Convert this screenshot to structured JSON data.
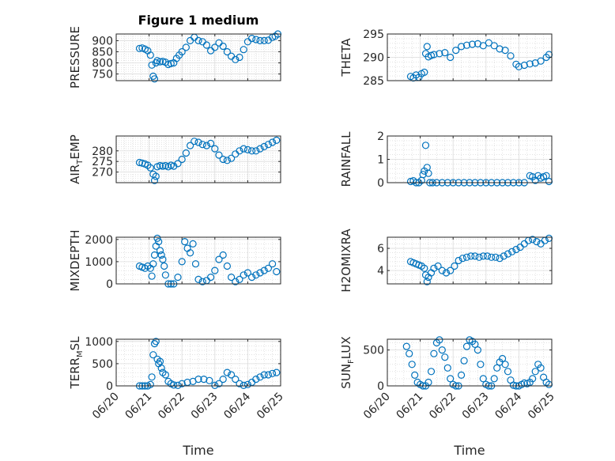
{
  "title": "Figure 1 medium",
  "x_label": "Time",
  "x_ticks": [
    "06/20",
    "06/21",
    "06/22",
    "06/23",
    "06/24",
    "06/25"
  ],
  "marker_color": "#0072BD",
  "chart_data": [
    {
      "type": "scatter",
      "ylabel": "PRESSURE",
      "ylim": [
        720,
        930
      ],
      "yticks": [
        750,
        800,
        850,
        900
      ],
      "x_range": [
        "06/20",
        "06/25"
      ],
      "series": [
        {
          "x": [
            "06/20 17:00",
            "06/20 19:00",
            "06/20 21:00",
            "06/20 23:00",
            "06/21 01:00",
            "06/21 02:00",
            "06/21 03:00",
            "06/21 04:00",
            "06/21 05:00",
            "06/21 06:00",
            "06/21 08:00",
            "06/21 10:00",
            "06/21 12:00",
            "06/21 14:00",
            "06/21 16:00",
            "06/21 18:00",
            "06/21 20:00",
            "06/21 22:00",
            "06/22 00:00",
            "06/22 03:00",
            "06/22 06:00",
            "06/22 09:00",
            "06/22 12:00",
            "06/22 15:00",
            "06/22 18:00",
            "06/22 21:00",
            "06/23 00:00",
            "06/23 03:00",
            "06/23 06:00",
            "06/23 09:00",
            "06/23 12:00",
            "06/23 15:00",
            "06/23 18:00",
            "06/23 21:00",
            "06/24 00:00",
            "06/24 03:00",
            "06/24 06:00",
            "06/24 09:00",
            "06/24 12:00",
            "06/24 15:00",
            "06/24 18:00",
            "06/24 20:00",
            "06/24 22:00"
          ],
          "y": [
            865,
            867,
            862,
            855,
            835,
            790,
            740,
            728,
            800,
            810,
            805,
            807,
            803,
            793,
            797,
            800,
            820,
            835,
            850,
            870,
            900,
            915,
            900,
            895,
            880,
            855,
            870,
            890,
            875,
            850,
            830,
            815,
            825,
            860,
            895,
            910,
            905,
            900,
            900,
            902,
            915,
            920,
            930
          ]
        }
      ]
    },
    {
      "type": "scatter",
      "ylabel": "THETA",
      "ylim": [
        285,
        295
      ],
      "yticks": [
        285,
        290,
        295
      ],
      "x_range": [
        "06/20",
        "06/25"
      ],
      "series": [
        {
          "x": [
            "06/20 17:00",
            "06/20 19:00",
            "06/20 21:00",
            "06/20 23:00",
            "06/21 01:00",
            "06/21 03:00",
            "06/21 04:00",
            "06/21 05:00",
            "06/21 06:00",
            "06/21 08:00",
            "06/21 10:00",
            "06/21 14:00",
            "06/21 18:00",
            "06/21 22:00",
            "06/22 02:00",
            "06/22 06:00",
            "06/22 10:00",
            "06/22 14:00",
            "06/22 18:00",
            "06/22 22:00",
            "06/23 02:00",
            "06/23 06:00",
            "06/23 10:00",
            "06/23 14:00",
            "06/23 18:00",
            "06/23 22:00",
            "06/24 00:00",
            "06/24 04:00",
            "06/24 08:00",
            "06/24 12:00",
            "06/24 16:00",
            "06/24 20:00",
            "06/24 22:00"
          ],
          "y": [
            285.9,
            285.6,
            286.2,
            285.7,
            286.5,
            286.8,
            290.8,
            292.3,
            290.1,
            290.4,
            290.6,
            290.8,
            291.0,
            290.0,
            291.5,
            292.3,
            292.6,
            292.8,
            292.9,
            292.5,
            293.1,
            292.5,
            291.8,
            291.5,
            290.3,
            288.5,
            288.0,
            288.3,
            288.6,
            288.8,
            289.2,
            290.0,
            290.6
          ]
        }
      ]
    },
    {
      "type": "scatter",
      "ylabel": "AIR_TEMP",
      "ylim": [
        265,
        287
      ],
      "yticks": [
        270,
        275,
        280
      ],
      "x_range": [
        "06/20",
        "06/25"
      ],
      "series": [
        {
          "x": [
            "06/20 17:00",
            "06/20 19:00",
            "06/20 21:00",
            "06/20 23:00",
            "06/21 01:00",
            "06/21 03:00",
            "06/21 04:00",
            "06/21 05:00",
            "06/21 06:00",
            "06/21 08:00",
            "06/21 10:00",
            "06/21 12:00",
            "06/21 14:00",
            "06/21 16:00",
            "06/21 18:00",
            "06/21 21:00",
            "06/22 00:00",
            "06/22 03:00",
            "06/22 06:00",
            "06/22 09:00",
            "06/22 12:00",
            "06/22 15:00",
            "06/22 18:00",
            "06/22 21:00",
            "06/23 00:00",
            "06/23 03:00",
            "06/23 06:00",
            "06/23 09:00",
            "06/23 12:00",
            "06/23 15:00",
            "06/23 18:00",
            "06/23 21:00",
            "06/24 00:00",
            "06/24 03:00",
            "06/24 06:00",
            "06/24 09:00",
            "06/24 12:00",
            "06/24 15:00",
            "06/24 18:00",
            "06/24 21:00"
          ],
          "y": [
            274.5,
            274.2,
            273.8,
            273.2,
            272.0,
            269.0,
            266.0,
            268.0,
            272.5,
            273.0,
            272.8,
            273.0,
            272.5,
            273.2,
            272.8,
            274.0,
            276.0,
            279.0,
            282.5,
            284.5,
            284.0,
            283.0,
            282.5,
            283.5,
            281.0,
            278.0,
            276.0,
            275.5,
            276.5,
            278.5,
            280.0,
            281.0,
            280.5,
            280.0,
            280.0,
            281.0,
            282.0,
            283.0,
            284.0,
            285.0
          ]
        }
      ]
    },
    {
      "type": "scatter",
      "ylabel": "RAINFALL",
      "ylim": [
        0,
        2
      ],
      "yticks": [
        0,
        1,
        2
      ],
      "x_range": [
        "06/20",
        "06/25"
      ],
      "series": [
        {
          "x": [
            "06/20 17:00",
            "06/20 19:00",
            "06/20 21:00",
            "06/20 23:00",
            "06/21 01:00",
            "06/21 02:00",
            "06/21 03:00",
            "06/21 04:00",
            "06/21 05:00",
            "06/21 06:00",
            "06/21 07:00",
            "06/21 09:00",
            "06/21 12:00",
            "06/21 16:00",
            "06/21 20:00",
            "06/22 00:00",
            "06/22 04:00",
            "06/22 08:00",
            "06/22 12:00",
            "06/22 16:00",
            "06/22 20:00",
            "06/23 00:00",
            "06/23 04:00",
            "06/23 08:00",
            "06/23 12:00",
            "06/23 16:00",
            "06/23 20:00",
            "06/24 00:00",
            "06/24 04:00",
            "06/24 08:00",
            "06/24 10:00",
            "06/24 12:00",
            "06/24 14:00",
            "06/24 16:00",
            "06/24 18:00",
            "06/24 20:00",
            "06/24 22:00"
          ],
          "y": [
            0.05,
            0.08,
            0.0,
            0.0,
            0.1,
            0.35,
            0.5,
            1.6,
            0.65,
            0.4,
            0.0,
            0.0,
            0.0,
            0.0,
            0.0,
            0.0,
            0.0,
            0.0,
            0.0,
            0.0,
            0.0,
            0.0,
            0.0,
            0.0,
            0.0,
            0.0,
            0.0,
            0.0,
            0.0,
            0.3,
            0.25,
            0.1,
            0.3,
            0.2,
            0.25,
            0.3,
            0.05
          ]
        }
      ]
    },
    {
      "type": "scatter",
      "ylabel": "MIXDEPTH",
      "ylim": [
        0,
        2100
      ],
      "yticks": [
        0,
        1000,
        2000
      ],
      "x_range": [
        "06/20",
        "06/25"
      ],
      "series": [
        {
          "x": [
            "06/20 17:00",
            "06/20 19:00",
            "06/20 21:00",
            "06/20 23:00",
            "06/21 01:00",
            "06/21 02:00",
            "06/21 03:00",
            "06/21 04:00",
            "06/21 05:00",
            "06/21 06:00",
            "06/21 07:00",
            "06/21 08:00",
            "06/21 09:00",
            "06/21 10:00",
            "06/21 11:00",
            "06/21 12:00",
            "06/21 14:00",
            "06/21 16:00",
            "06/21 18:00",
            "06/21 21:00",
            "06/22 00:00",
            "06/22 02:00",
            "06/22 04:00",
            "06/22 06:00",
            "06/22 08:00",
            "06/22 10:00",
            "06/22 12:00",
            "06/22 15:00",
            "06/22 18:00",
            "06/22 21:00",
            "06/23 00:00",
            "06/23 03:00",
            "06/23 06:00",
            "06/23 09:00",
            "06/23 12:00",
            "06/23 15:00",
            "06/23 18:00",
            "06/23 21:00",
            "06/24 00:00",
            "06/24 03:00",
            "06/24 06:00",
            "06/24 09:00",
            "06/24 12:00",
            "06/24 15:00",
            "06/24 18:00",
            "06/24 21:00"
          ],
          "y": [
            800,
            750,
            700,
            800,
            700,
            350,
            900,
            1300,
            1700,
            2050,
            1900,
            1500,
            1300,
            1100,
            800,
            400,
            0,
            0,
            0,
            300,
            1000,
            1900,
            1600,
            1400,
            1800,
            900,
            200,
            100,
            150,
            300,
            600,
            1100,
            1300,
            800,
            300,
            100,
            200,
            400,
            500,
            300,
            400,
            500,
            600,
            700,
            900,
            550
          ]
        }
      ]
    },
    {
      "type": "scatter",
      "ylabel": "H2OMIXRA",
      "ylim": [
        2.8,
        7
      ],
      "yticks": [
        4,
        6
      ],
      "x_range": [
        "06/20",
        "06/25"
      ],
      "series": [
        {
          "x": [
            "06/20 17:00",
            "06/20 19:00",
            "06/20 21:00",
            "06/20 23:00",
            "06/21 01:00",
            "06/21 03:00",
            "06/21 04:00",
            "06/21 05:00",
            "06/21 06:00",
            "06/21 08:00",
            "06/21 10:00",
            "06/21 13:00",
            "06/21 16:00",
            "06/21 19:00",
            "06/21 22:00",
            "06/22 01:00",
            "06/22 04:00",
            "06/22 07:00",
            "06/22 10:00",
            "06/22 13:00",
            "06/22 16:00",
            "06/22 19:00",
            "06/22 22:00",
            "06/23 01:00",
            "06/23 04:00",
            "06/23 07:00",
            "06/23 10:00",
            "06/23 13:00",
            "06/23 16:00",
            "06/23 19:00",
            "06/23 22:00",
            "06/24 01:00",
            "06/24 04:00",
            "06/24 07:00",
            "06/24 10:00",
            "06/24 13:00",
            "06/24 16:00",
            "06/24 19:00",
            "06/24 22:00"
          ],
          "y": [
            4.8,
            4.7,
            4.6,
            4.5,
            4.4,
            4.2,
            3.6,
            3.0,
            3.4,
            3.8,
            4.2,
            4.4,
            4.0,
            3.8,
            4.0,
            4.4,
            4.9,
            5.1,
            5.2,
            5.3,
            5.3,
            5.2,
            5.3,
            5.3,
            5.2,
            5.2,
            5.1,
            5.3,
            5.5,
            5.7,
            5.9,
            6.1,
            6.4,
            6.7,
            6.8,
            6.6,
            6.4,
            6.7,
            6.9
          ]
        }
      ]
    },
    {
      "type": "scatter",
      "ylabel": "TERR_MSL",
      "ylim": [
        0,
        1050
      ],
      "yticks": [
        0,
        500,
        1000
      ],
      "x_range": [
        "06/20",
        "06/25"
      ],
      "series": [
        {
          "x": [
            "06/20 17:00",
            "06/20 19:00",
            "06/20 21:00",
            "06/20 23:00",
            "06/21 01:00",
            "06/21 02:00",
            "06/21 03:00",
            "06/21 04:00",
            "06/21 05:00",
            "06/21 06:00",
            "06/21 07:00",
            "06/21 08:00",
            "06/21 09:00",
            "06/21 10:00",
            "06/21 12:00",
            "06/21 14:00",
            "06/21 16:00",
            "06/21 18:00",
            "06/21 21:00",
            "06/22 00:00",
            "06/22 04:00",
            "06/22 08:00",
            "06/22 12:00",
            "06/22 16:00",
            "06/22 20:00",
            "06/23 00:00",
            "06/23 03:00",
            "06/23 06:00",
            "06/23 09:00",
            "06/23 12:00",
            "06/23 15:00",
            "06/23 18:00",
            "06/23 21:00",
            "06/24 00:00",
            "06/24 03:00",
            "06/24 06:00",
            "06/24 09:00",
            "06/24 12:00",
            "06/24 15:00",
            "06/24 18:00",
            "06/24 21:00"
          ],
          "y": [
            0,
            0,
            0,
            0,
            30,
            200,
            700,
            950,
            1000,
            600,
            500,
            550,
            400,
            300,
            250,
            100,
            50,
            20,
            10,
            50,
            80,
            100,
            150,
            150,
            120,
            10,
            50,
            150,
            300,
            250,
            150,
            50,
            10,
            30,
            80,
            150,
            200,
            250,
            250,
            280,
            300
          ]
        }
      ]
    },
    {
      "type": "scatter",
      "ylabel": "SUN_FLUX",
      "ylim": [
        0,
        650
      ],
      "yticks": [
        0,
        500
      ],
      "x_range": [
        "06/20",
        "06/25"
      ],
      "series": [
        {
          "x": [
            "06/20 14:00",
            "06/20 16:00",
            "06/20 18:00",
            "06/20 20:00",
            "06/20 22:00",
            "06/21 00:00",
            "06/21 02:00",
            "06/21 04:00",
            "06/21 06:00",
            "06/21 08:00",
            "06/21 10:00",
            "06/21 12:00",
            "06/21 14:00",
            "06/21 16:00",
            "06/21 18:00",
            "06/21 20:00",
            "06/21 22:00",
            "06/22 00:00",
            "06/22 02:00",
            "06/22 04:00",
            "06/22 06:00",
            "06/22 08:00",
            "06/22 10:00",
            "06/22 12:00",
            "06/22 14:00",
            "06/22 16:00",
            "06/22 18:00",
            "06/22 20:00",
            "06/22 22:00",
            "06/23 00:00",
            "06/23 02:00",
            "06/23 04:00",
            "06/23 06:00",
            "06/23 08:00",
            "06/23 10:00",
            "06/23 12:00",
            "06/23 14:00",
            "06/23 16:00",
            "06/23 18:00",
            "06/23 20:00",
            "06/23 22:00",
            "06/24 00:00",
            "06/24 02:00",
            "06/24 04:00",
            "06/24 06:00",
            "06/24 08:00",
            "06/24 10:00",
            "06/24 12:00",
            "06/24 14:00",
            "06/24 16:00",
            "06/24 18:00",
            "06/24 20:00",
            "06/24 22:00"
          ],
          "y": [
            550,
            450,
            300,
            150,
            50,
            20,
            0,
            0,
            50,
            200,
            450,
            600,
            640,
            500,
            400,
            250,
            100,
            20,
            0,
            0,
            150,
            350,
            550,
            640,
            620,
            580,
            500,
            300,
            100,
            20,
            0,
            0,
            100,
            250,
            330,
            380,
            300,
            200,
            80,
            10,
            0,
            0,
            20,
            40,
            30,
            50,
            100,
            200,
            300,
            250,
            120,
            50,
            20
          ]
        }
      ]
    }
  ]
}
